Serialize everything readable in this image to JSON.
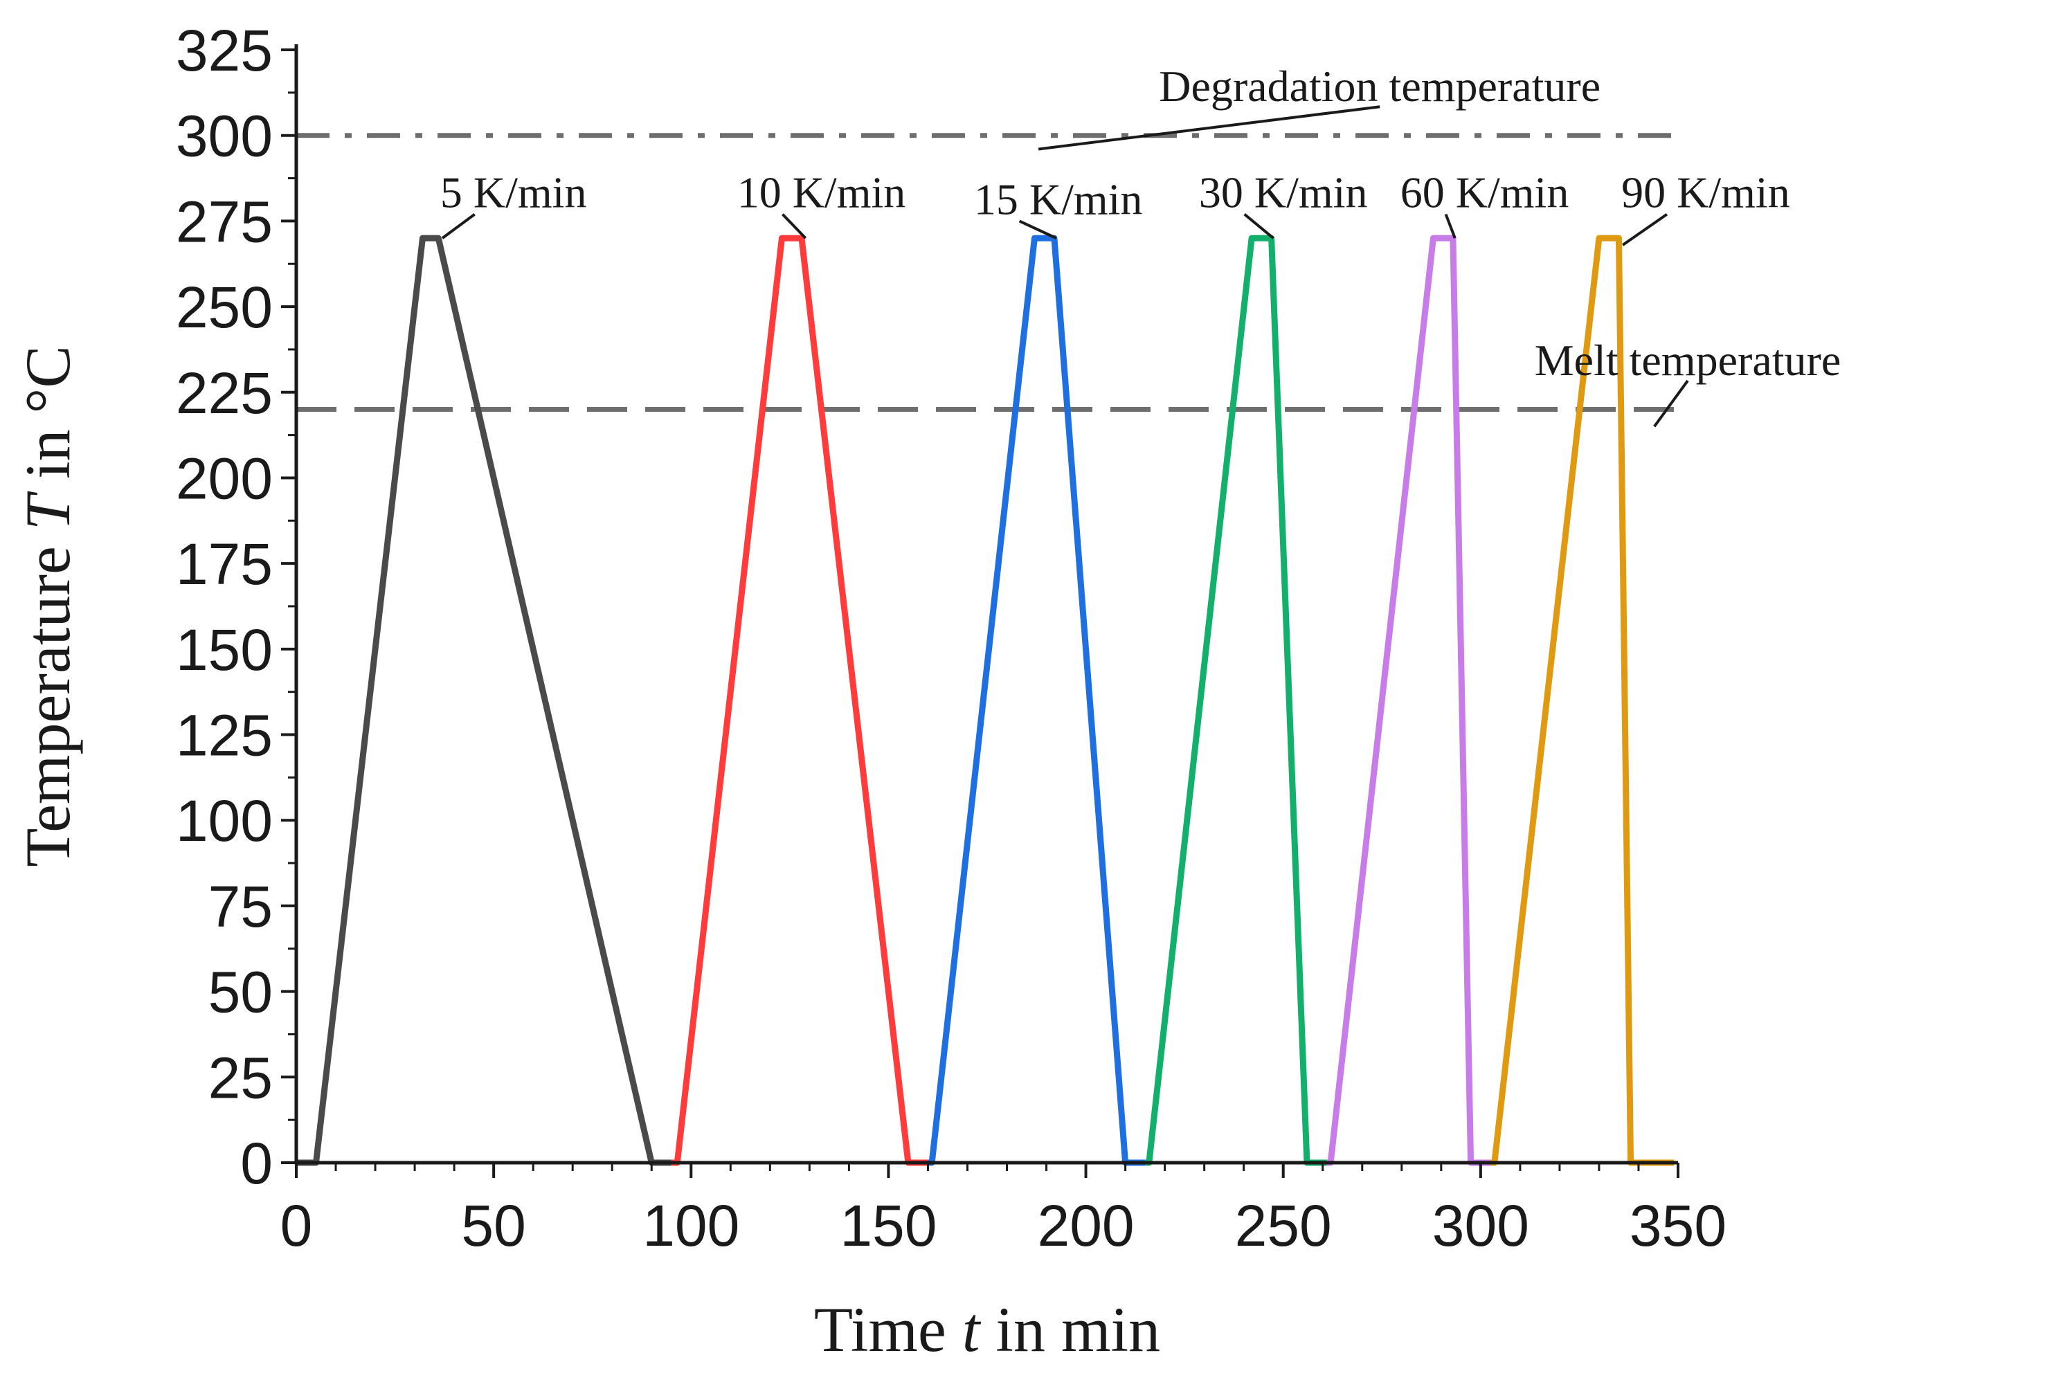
{
  "chart_data": {
    "type": "line",
    "title": "",
    "xlabel": {
      "prefix": "Time ",
      "var": "t",
      "suffix": " in min"
    },
    "ylabel": {
      "prefix": "Temperature ",
      "var": "T",
      "suffix": " in °C"
    },
    "xlim": [
      0,
      350
    ],
    "ylim": [
      0,
      325
    ],
    "xticks": [
      0,
      50,
      100,
      150,
      200,
      250,
      300,
      350
    ],
    "yticks": [
      0,
      25,
      50,
      75,
      100,
      125,
      150,
      175,
      200,
      225,
      250,
      275,
      300,
      325
    ],
    "grid": false,
    "reference_lines": [
      {
        "name": "Degradation temperature",
        "label": "Degradation temperature",
        "y": 300,
        "style": "dashdot",
        "color": "#6e6e6e",
        "label_at": [
          272,
          310
        ],
        "pointer_at": [
          188,
          296
        ]
      },
      {
        "name": "Melt temperature",
        "label": "Melt temperature",
        "y": 220,
        "style": "dashed",
        "color": "#6e6e6e",
        "label_at": [
          350,
          230
        ],
        "pointer_at": [
          344,
          215
        ]
      }
    ],
    "series": [
      {
        "name": "5 K/min",
        "label": "5 K/min",
        "color": "#4a4a4a",
        "x": [
          0,
          5,
          32,
          36,
          90,
          95
        ],
        "y": [
          0,
          0,
          270,
          270,
          0,
          0
        ],
        "label_at": [
          55,
          279
        ],
        "pointer_at": [
          37,
          270
        ]
      },
      {
        "name": "10 K/min",
        "label": "10 K/min",
        "color": "#ff3b3b",
        "x": [
          95,
          96.5,
          123,
          128,
          155,
          160
        ],
        "y": [
          0,
          0,
          270,
          270,
          0,
          0
        ],
        "label_at": [
          133,
          279
        ],
        "pointer_at": [
          129,
          270
        ]
      },
      {
        "name": "15 K/min",
        "label": "15 K/min",
        "color": "#1f6fe0",
        "x": [
          160,
          161,
          187,
          192,
          210,
          215
        ],
        "y": [
          0,
          0,
          270,
          270,
          0,
          0
        ],
        "label_at": [
          193,
          277
        ],
        "pointer_at": [
          192.5,
          270
        ]
      },
      {
        "name": "30 K/min",
        "label": "30 K/min",
        "color": "#12b06b",
        "x": [
          215,
          216,
          242,
          247,
          256,
          261
        ],
        "y": [
          0,
          0,
          270,
          270,
          0,
          0
        ],
        "label_at": [
          250,
          279
        ],
        "pointer_at": [
          247.5,
          270
        ]
      },
      {
        "name": "60 K/min",
        "label": "60 K/min",
        "color": "#c77ce8",
        "x": [
          261,
          262,
          288,
          293,
          297.5,
          302.5
        ],
        "y": [
          0,
          0,
          270,
          270,
          0,
          0
        ],
        "label_at": [
          301,
          279
        ],
        "pointer_at": [
          293.5,
          270
        ]
      },
      {
        "name": "90 K/min",
        "label": "90 K/min",
        "color": "#e09a12",
        "x": [
          302.5,
          303.5,
          330,
          335,
          338,
          349
        ],
        "y": [
          0,
          0,
          270,
          270,
          0,
          0
        ],
        "label_at": [
          357,
          279
        ],
        "pointer_at": [
          336,
          268
        ]
      }
    ]
  }
}
